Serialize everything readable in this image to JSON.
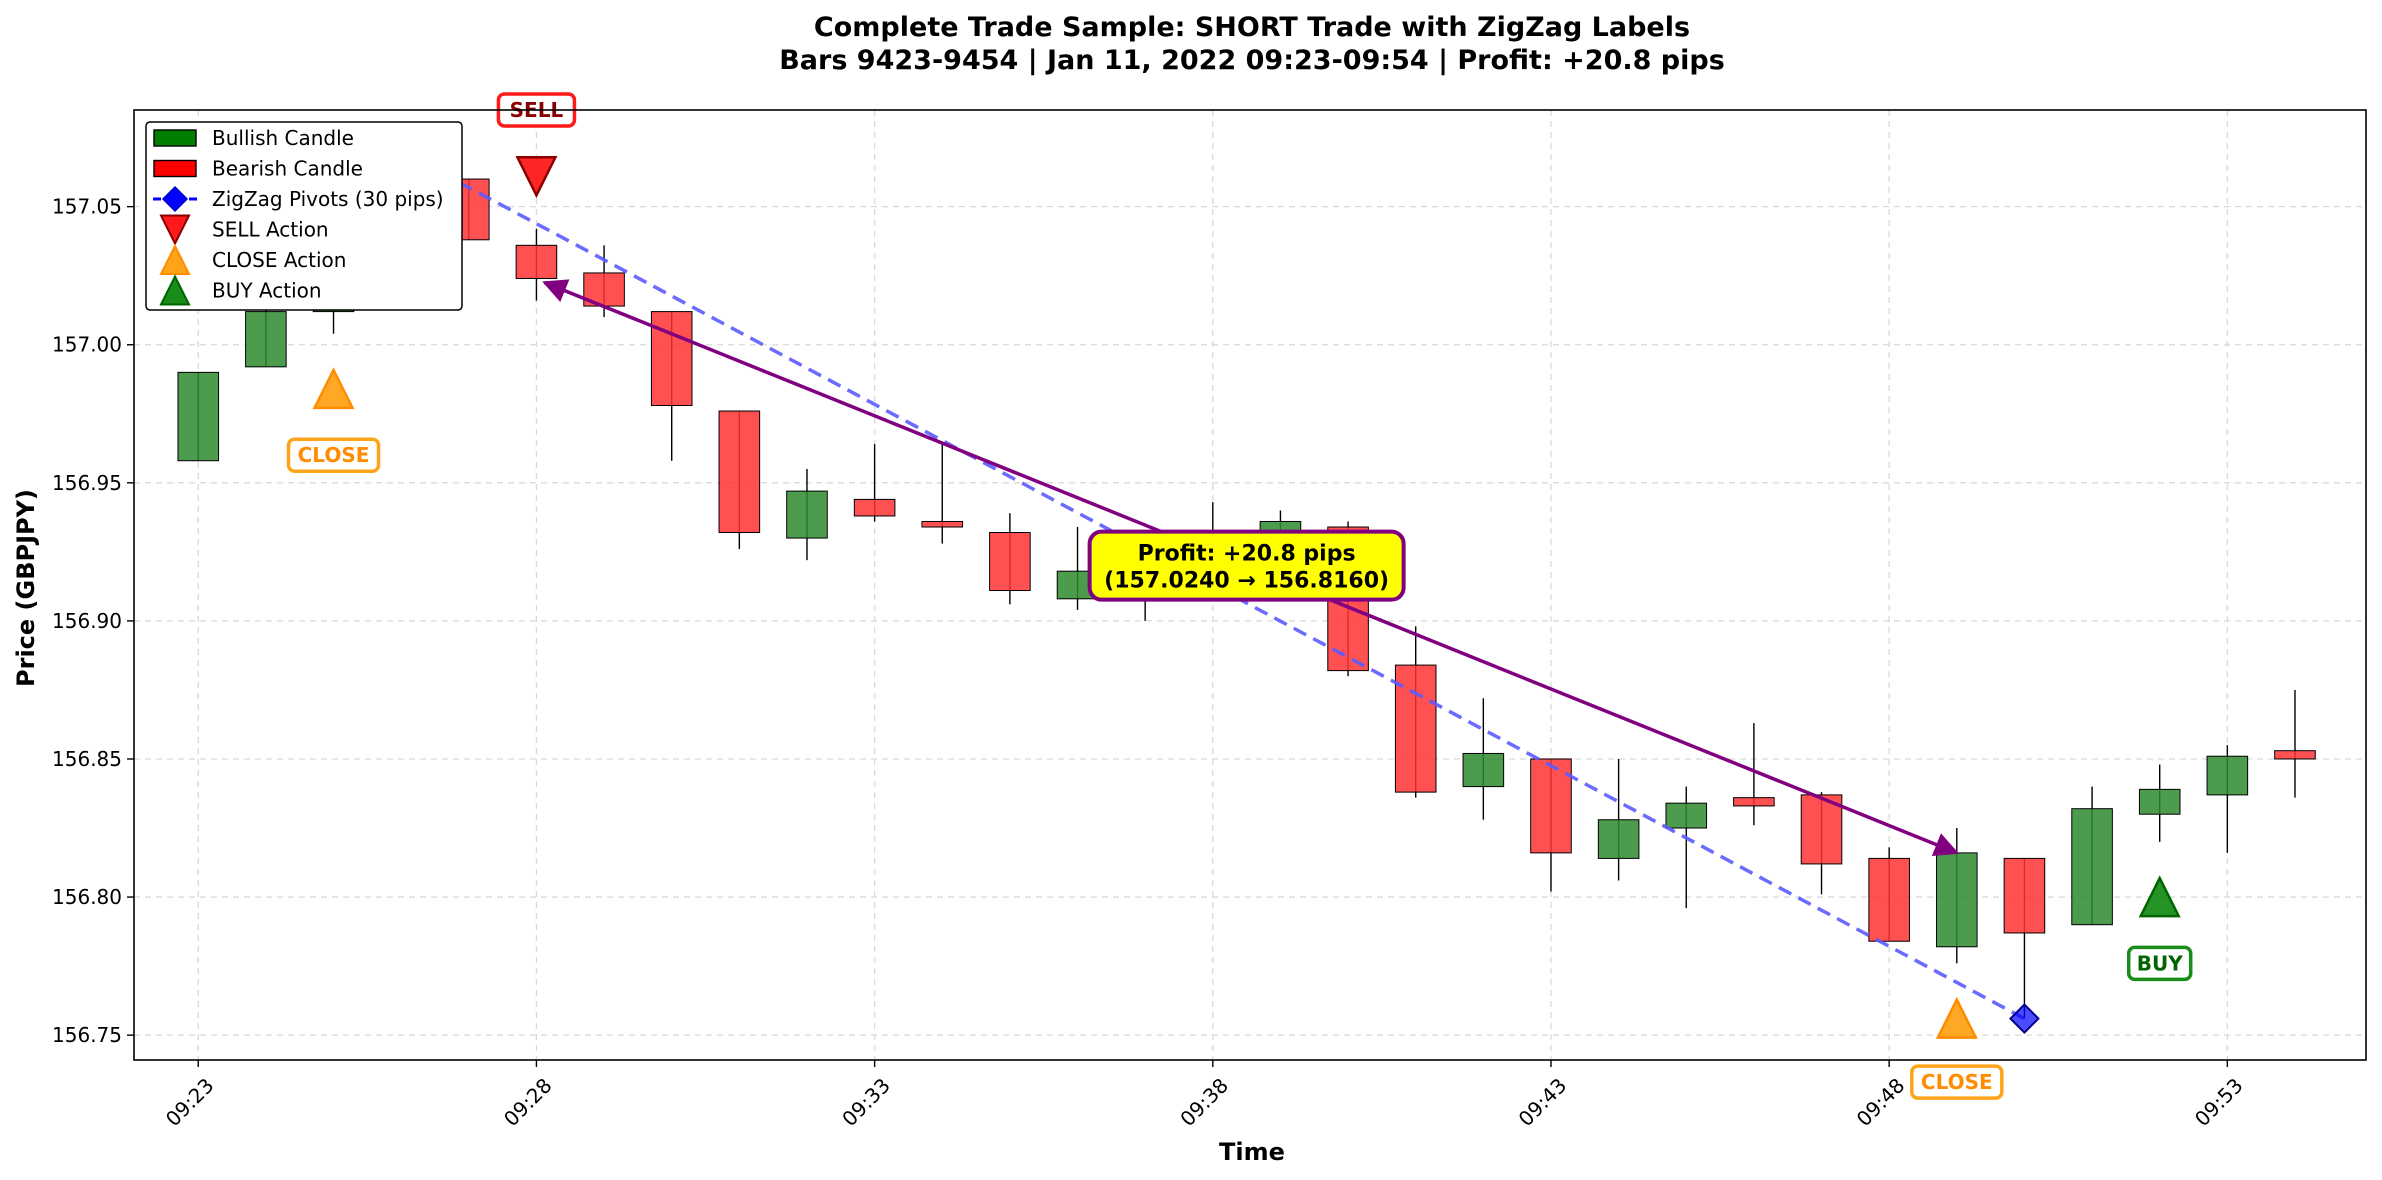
{
  "chart_data": {
    "type": "candlestick",
    "title_line1": "Complete Trade Sample: SHORT Trade with ZigZag Labels",
    "title_line2": "Bars 9423-9454 | Jan 11, 2022 09:23-09:54 | Profit: +20.8 pips",
    "xlabel": "Time",
    "ylabel": "Price (GBPJPY)",
    "ylim": [
      156.741,
      157.085
    ],
    "xlim": [
      -0.95,
      32.05
    ],
    "x_ticks": [
      {
        "index": 0,
        "label": "09:23"
      },
      {
        "index": 5,
        "label": "09:28"
      },
      {
        "index": 10,
        "label": "09:33"
      },
      {
        "index": 15,
        "label": "09:38"
      },
      {
        "index": 20,
        "label": "09:43"
      },
      {
        "index": 25,
        "label": "09:48"
      },
      {
        "index": 30,
        "label": "09:53"
      }
    ],
    "y_ticks": [
      {
        "value": 156.75,
        "label": "156.75"
      },
      {
        "value": 156.8,
        "label": "156.80"
      },
      {
        "value": 156.85,
        "label": "156.85"
      },
      {
        "value": 156.9,
        "label": "156.90"
      },
      {
        "value": 156.95,
        "label": "156.95"
      },
      {
        "value": 157.0,
        "label": "157.00"
      },
      {
        "value": 157.05,
        "label": "157.05"
      }
    ],
    "grid": true,
    "legend_position": "top-left",
    "colors": {
      "bullish": "#2e8b2e",
      "bearish": "#ff3333",
      "zigzag": "#5b5bff",
      "sell": "#ff0000",
      "close": "#ff9900",
      "buy": "#008000",
      "profit_arrow": "#800080",
      "profit_box_fill": "#ffff00"
    },
    "candles": [
      {
        "time": "09:23",
        "open": 156.958,
        "high": 156.99,
        "low": 156.958,
        "close": 156.99
      },
      {
        "time": "09:24",
        "open": 156.992,
        "high": 157.018,
        "low": 156.992,
        "close": 157.012
      },
      {
        "time": "09:25",
        "open": 157.012,
        "high": 157.02,
        "low": 157.004,
        "close": 157.02
      },
      {
        "time": "09:26",
        "open": 157.023,
        "high": 157.07,
        "low": 157.023,
        "close": 157.063
      },
      {
        "time": "09:27",
        "open": 157.06,
        "high": 157.06,
        "low": 157.038,
        "close": 157.038
      },
      {
        "time": "09:28",
        "open": 157.036,
        "high": 157.042,
        "low": 157.016,
        "close": 157.024
      },
      {
        "time": "09:29",
        "open": 157.026,
        "high": 157.036,
        "low": 157.01,
        "close": 157.014
      },
      {
        "time": "09:30",
        "open": 157.012,
        "high": 157.012,
        "low": 156.958,
        "close": 156.978
      },
      {
        "time": "09:31",
        "open": 156.976,
        "high": 156.976,
        "low": 156.926,
        "close": 156.932
      },
      {
        "time": "09:32",
        "open": 156.93,
        "high": 156.955,
        "low": 156.922,
        "close": 156.947
      },
      {
        "time": "09:33",
        "open": 156.944,
        "high": 156.964,
        "low": 156.936,
        "close": 156.938
      },
      {
        "time": "09:34",
        "open": 156.936,
        "high": 156.965,
        "low": 156.928,
        "close": 156.934
      },
      {
        "time": "09:35",
        "open": 156.932,
        "high": 156.939,
        "low": 156.906,
        "close": 156.911
      },
      {
        "time": "09:36",
        "open": 156.908,
        "high": 156.934,
        "low": 156.904,
        "close": 156.918
      },
      {
        "time": "09:37",
        "open": 156.918,
        "high": 156.93,
        "low": 156.9,
        "close": 156.91
      },
      {
        "time": "09:38",
        "open": 156.91,
        "high": 156.943,
        "low": 156.908,
        "close": 156.93
      },
      {
        "time": "09:39",
        "open": 156.93,
        "high": 156.94,
        "low": 156.926,
        "close": 156.936
      },
      {
        "time": "09:40",
        "open": 156.934,
        "high": 156.936,
        "low": 156.88,
        "close": 156.882
      },
      {
        "time": "09:41",
        "open": 156.884,
        "high": 156.898,
        "low": 156.836,
        "close": 156.838
      },
      {
        "time": "09:42",
        "open": 156.84,
        "high": 156.872,
        "low": 156.828,
        "close": 156.852
      },
      {
        "time": "09:43",
        "open": 156.85,
        "high": 156.85,
        "low": 156.802,
        "close": 156.816
      },
      {
        "time": "09:44",
        "open": 156.814,
        "high": 156.85,
        "low": 156.806,
        "close": 156.828
      },
      {
        "time": "09:45",
        "open": 156.825,
        "high": 156.84,
        "low": 156.796,
        "close": 156.834
      },
      {
        "time": "09:46",
        "open": 156.836,
        "high": 156.863,
        "low": 156.826,
        "close": 156.833
      },
      {
        "time": "09:47",
        "open": 156.837,
        "high": 156.838,
        "low": 156.801,
        "close": 156.812
      },
      {
        "time": "09:48",
        "open": 156.814,
        "high": 156.818,
        "low": 156.784,
        "close": 156.784
      },
      {
        "time": "09:49",
        "open": 156.782,
        "high": 156.825,
        "low": 156.776,
        "close": 156.816
      },
      {
        "time": "09:50",
        "open": 156.814,
        "high": 156.814,
        "low": 156.756,
        "close": 156.787
      },
      {
        "time": "09:51",
        "open": 156.79,
        "high": 156.84,
        "low": 156.79,
        "close": 156.832
      },
      {
        "time": "09:52",
        "open": 156.83,
        "high": 156.848,
        "low": 156.82,
        "close": 156.839
      },
      {
        "time": "09:53",
        "open": 156.837,
        "high": 156.855,
        "low": 156.816,
        "close": 156.851
      },
      {
        "time": "09:54",
        "open": 156.853,
        "high": 156.875,
        "low": 156.836,
        "close": 156.85
      }
    ],
    "zigzag_pivots": [
      {
        "index": 3,
        "price": 157.07
      },
      {
        "index": 27,
        "price": 156.756
      }
    ],
    "actions": [
      {
        "type": "CLOSE",
        "index": 2,
        "price": 156.984,
        "label_price": 156.96,
        "label": "CLOSE",
        "direction": "up"
      },
      {
        "type": "SELL",
        "index": 5,
        "price": 157.061,
        "label_price": 157.085,
        "label": "SELL",
        "direction": "down"
      },
      {
        "type": "CLOSE",
        "index": 26,
        "price": 156.756,
        "label_price": 156.733,
        "label": "CLOSE",
        "direction": "up"
      },
      {
        "type": "BUY",
        "index": 29,
        "price": 156.8,
        "label_price": 156.776,
        "label": "BUY",
        "direction": "up"
      }
    ],
    "profit_arrow": {
      "from_index": 5,
      "from_price": 157.024,
      "to_index": 26,
      "to_price": 156.816
    },
    "profit_annotation": {
      "line1": "Profit: +20.8 pips",
      "line2": "(157.0240 → 156.8160)",
      "index": 15.5,
      "price": 156.92
    },
    "legend": [
      {
        "key": "bullish",
        "label": "Bullish Candle"
      },
      {
        "key": "bearish",
        "label": "Bearish Candle"
      },
      {
        "key": "zigzag",
        "label": "ZigZag Pivots (30 pips)"
      },
      {
        "key": "sell",
        "label": "SELL Action"
      },
      {
        "key": "close",
        "label": "CLOSE Action"
      },
      {
        "key": "buy",
        "label": "BUY Action"
      }
    ]
  }
}
